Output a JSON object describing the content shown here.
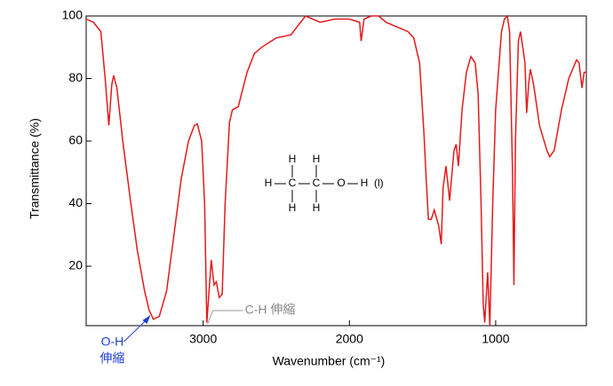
{
  "chart_data": {
    "type": "line",
    "x_label": "Wavenumber (cm⁻¹)",
    "y_label": "Transmittance (%)",
    "xlim": [
      3800,
      380
    ],
    "ylim": [
      1,
      100
    ],
    "xticks": [
      3000,
      2000,
      1000
    ],
    "yticks": [
      20,
      40,
      60,
      80,
      100
    ],
    "x_reversed": true,
    "series": [
      {
        "name": "ethanol",
        "color": "#e41a1c",
        "x": [
          3800,
          3750,
          3700,
          3670,
          3645,
          3625,
          3612,
          3590,
          3550,
          3500,
          3450,
          3400,
          3370,
          3340,
          3300,
          3250,
          3200,
          3150,
          3100,
          3060,
          3040,
          3010,
          2990,
          2975,
          2960,
          2945,
          2925,
          2910,
          2890,
          2870,
          2850,
          2820,
          2800,
          2760,
          2700,
          2650,
          2600,
          2500,
          2400,
          2350,
          2300,
          2200,
          2100,
          2000,
          1930,
          1920,
          1900,
          1850,
          1800,
          1750,
          1700,
          1650,
          1600,
          1560,
          1520,
          1490,
          1475,
          1460,
          1440,
          1420,
          1390,
          1372,
          1360,
          1340,
          1315,
          1285,
          1270,
          1255,
          1230,
          1200,
          1170,
          1140,
          1120,
          1100,
          1085,
          1075,
          1055,
          1040,
          1020,
          1000,
          960,
          940,
          920,
          905,
          885,
          875,
          865,
          845,
          830,
          800,
          788,
          775,
          763,
          740,
          700,
          650,
          630,
          600,
          550,
          500,
          447,
          430,
          410,
          395,
          380
        ],
        "values": [
          99,
          98,
          95,
          80,
          65,
          78,
          81,
          77,
          60,
          42,
          25,
          12,
          6,
          3,
          4,
          12,
          30,
          48,
          60,
          65,
          65.5,
          60,
          40,
          2,
          12,
          22,
          14,
          15,
          10,
          11,
          40,
          66,
          70,
          71,
          82,
          88,
          90,
          93,
          94,
          97,
          100,
          98,
          99,
          99,
          98,
          92,
          99,
          100,
          100,
          98,
          97,
          96,
          95,
          93,
          85,
          62,
          48,
          35,
          35,
          38,
          33,
          27,
          45,
          52,
          41,
          57,
          59,
          52,
          70,
          82,
          87,
          85,
          75,
          40,
          8,
          2,
          18,
          1,
          40,
          70,
          95,
          99,
          100,
          95,
          50,
          14,
          60,
          92,
          95,
          85,
          69,
          78,
          83,
          78,
          65,
          57,
          55,
          57,
          70,
          80,
          86,
          85,
          77,
          82,
          82
        ]
      }
    ],
    "annotations": [
      {
        "text": "C-H 伸縮",
        "x": 2970
      },
      {
        "text": "O-H",
        "text2": "伸縮",
        "x": 3360
      }
    ],
    "molecule": [
      "H",
      "H",
      "H",
      "C",
      "C",
      "O",
      "H",
      "H",
      "H",
      "(l)"
    ]
  }
}
